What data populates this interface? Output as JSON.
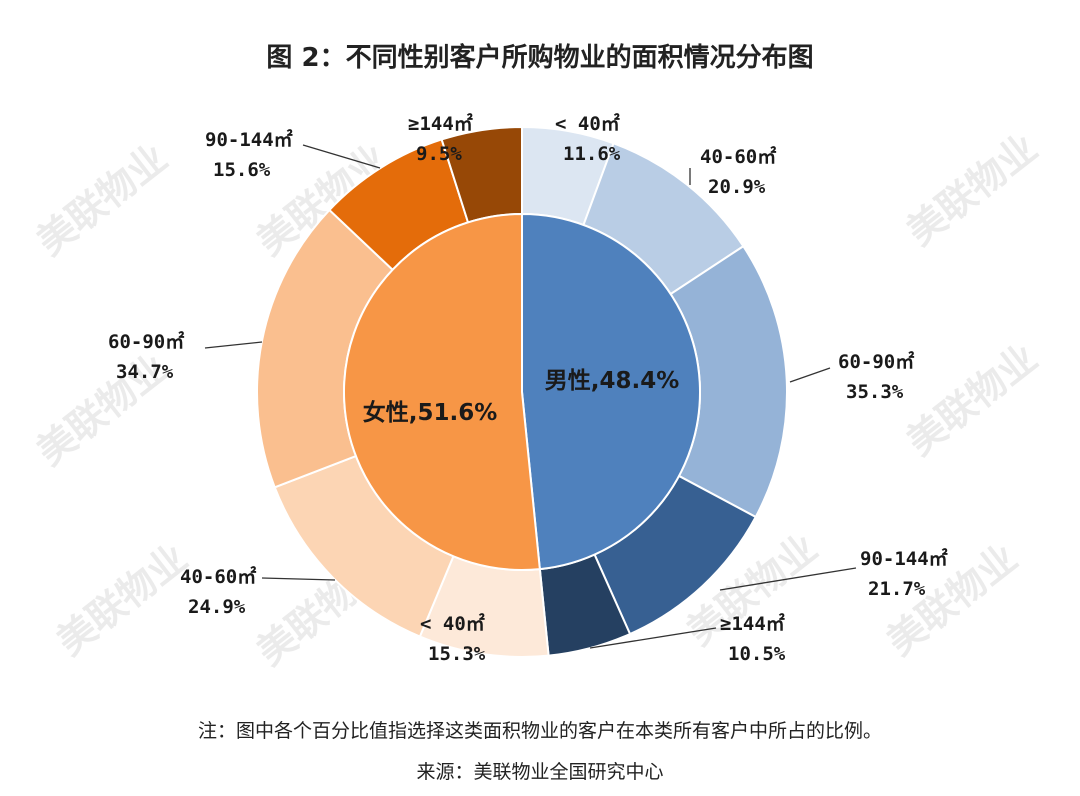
{
  "chart_data": {
    "type": "pie",
    "subtype": "nested-donut",
    "title": "图 2：不同性别客户所购物业的面积情况分布图",
    "inner": [
      {
        "name": "男性",
        "value": 48.4,
        "label": "男性,48.4%",
        "color": "#4f81bd"
      },
      {
        "name": "女性",
        "value": 51.6,
        "label": "女性,51.6%",
        "color": "#f79646"
      }
    ],
    "outer": [
      {
        "group": "男性",
        "name": "< 40㎡",
        "value": 11.6,
        "text": "11.6%",
        "color": "#dce6f2"
      },
      {
        "group": "男性",
        "name": "40-60㎡",
        "value": 20.9,
        "text": "20.9%",
        "color": "#b9cde5"
      },
      {
        "group": "男性",
        "name": "60-90㎡",
        "value": 35.3,
        "text": "35.3%",
        "color": "#95b3d7"
      },
      {
        "group": "男性",
        "name": "90-144㎡",
        "value": 21.7,
        "text": "21.7%",
        "color": "#376092"
      },
      {
        "group": "男性",
        "name": "≥144㎡",
        "value": 10.5,
        "text": "10.5%",
        "color": "#254061"
      },
      {
        "group": "女性",
        "name": "< 40㎡",
        "value": 15.3,
        "text": "15.3%",
        "color": "#fde9d9"
      },
      {
        "group": "女性",
        "name": "40-60㎡",
        "value": 24.9,
        "text": "24.9%",
        "color": "#fcd5b4"
      },
      {
        "group": "女性",
        "name": "60-90㎡",
        "value": 34.7,
        "text": "34.7%",
        "color": "#fabf8f"
      },
      {
        "group": "女性",
        "name": "90-144㎡",
        "value": 15.6,
        "text": "15.6%",
        "color": "#e46c0a"
      },
      {
        "group": "女性",
        "name": "≥144㎡",
        "value": 9.5,
        "text": "9.5%",
        "color": "#974806"
      }
    ]
  },
  "footer": {
    "note": "注：图中各个百分比值指选择这类面积物业的客户在本类所有客户中所占的比例。",
    "source": "来源：美联物业全国研究中心"
  },
  "watermark": "美联物业"
}
